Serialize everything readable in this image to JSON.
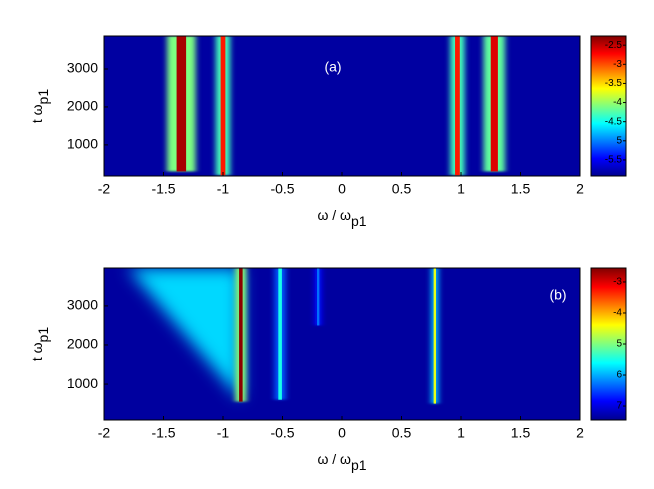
{
  "chart_data": [
    {
      "type": "heatmap",
      "label": "(a)",
      "xlabel": "ω / ω",
      "xlabel_sub": "p1",
      "ylabel": "t ω",
      "ylabel_sub": "p1",
      "xlim": [
        -2,
        2
      ],
      "xticks": [
        -2,
        -1.5,
        -1,
        -0.5,
        0,
        0.5,
        1,
        1.5,
        2
      ],
      "ylim": [
        180,
        3870
      ],
      "yticks": [
        1000,
        2000,
        3000
      ],
      "background": -5.8,
      "peaks": [
        {
          "x": -1.35,
          "width": 0.08,
          "value": -2.4,
          "t_start": 300
        },
        {
          "x": -1.0,
          "width": 0.04,
          "value": -2.8,
          "t_start": 200
        },
        {
          "x": 0.97,
          "width": 0.04,
          "value": -2.8,
          "t_start": 200
        },
        {
          "x": 1.28,
          "width": 0.06,
          "value": -2.6,
          "t_start": 300
        }
      ],
      "clim": [
        -5.92,
        -2.26
      ],
      "cticks": [
        -2.5,
        -3,
        -3.5,
        -4,
        -4.5,
        {
          "value": -5,
          "label": "5"
        },
        -5.5
      ]
    },
    {
      "type": "heatmap",
      "label": "(b)",
      "xlabel": "ω / ω",
      "xlabel_sub": "p1",
      "ylabel": "t ω",
      "ylabel_sub": "p1",
      "xlim": [
        -2,
        2
      ],
      "xticks": [
        -2,
        -1.5,
        -1,
        -0.5,
        0,
        0.5,
        1,
        1.5,
        2
      ],
      "ylim": [
        80,
        3970
      ],
      "yticks": [
        1000,
        2000,
        3000
      ],
      "background": -7.3,
      "peaks": [
        {
          "x": -0.85,
          "width": 0.03,
          "value": -2.6,
          "t_start": 550
        },
        {
          "x": -0.52,
          "width": 0.03,
          "value": -5.5,
          "t_start": 600
        },
        {
          "x": -0.2,
          "width": 0.02,
          "value": -6.3,
          "t_start": 2500
        },
        {
          "x": 0.78,
          "width": 0.02,
          "value": -4.5,
          "t_start": 500
        }
      ],
      "wedge": {
        "value": -5.8,
        "x": [
          -0.85,
          -1.8,
          -0.85
        ],
        "t": [
          600,
          3970,
          3970
        ]
      },
      "clim": [
        -7.45,
        -2.55
      ],
      "cticks": [
        -3,
        -4,
        {
          "value": -5,
          "label": "5"
        },
        {
          "value": -6,
          "label": "6"
        },
        {
          "value": -7,
          "label": "7"
        }
      ]
    }
  ]
}
